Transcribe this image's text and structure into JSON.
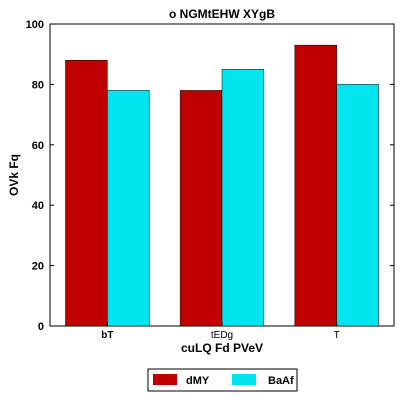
{
  "chart_data": {
    "type": "bar",
    "title": "o NGMtEHW XYgB",
    "xlabel": "cuLQ Fd PVeV",
    "ylabel": "OVk Fq",
    "categories": [
      "bT",
      "tEDg",
      "T"
    ],
    "series": [
      {
        "name": "dMY",
        "color": "#c00000",
        "values": [
          88,
          78,
          93
        ]
      },
      {
        "name": "BaAf",
        "color": "#00e5ee",
        "values": [
          78,
          85,
          80
        ]
      }
    ],
    "ylim": [
      0,
      100
    ],
    "yticks": [
      "0",
      "20",
      "40",
      "60",
      "80",
      "100"
    ],
    "grid": false,
    "legend_position": "bottom-center"
  }
}
